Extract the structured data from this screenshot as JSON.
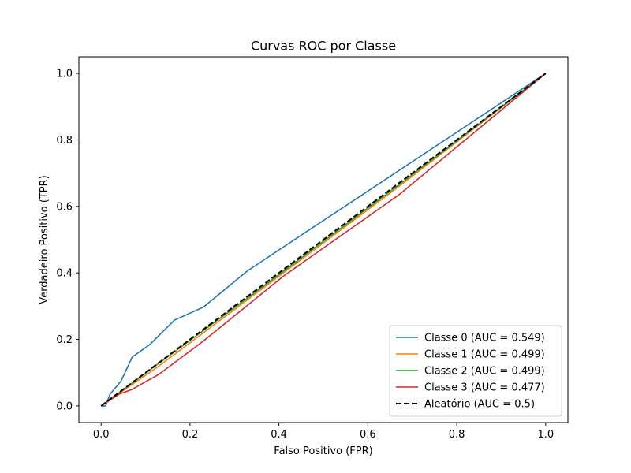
{
  "chart_data": {
    "type": "line",
    "title": "Curvas ROC por Classe",
    "xlabel": "Falso Positivo (FPR)",
    "ylabel": "Verdadeiro Positivo (TPR)",
    "xlim": [
      -0.05,
      1.05
    ],
    "ylim": [
      -0.05,
      1.05
    ],
    "xticks": [
      0.0,
      0.2,
      0.4,
      0.6,
      0.8,
      1.0
    ],
    "yticks": [
      0.0,
      0.2,
      0.4,
      0.6,
      0.8,
      1.0
    ],
    "xtick_labels": [
      "0.0",
      "0.2",
      "0.4",
      "0.6",
      "0.8",
      "1.0"
    ],
    "ytick_labels": [
      "0.0",
      "0.2",
      "0.4",
      "0.6",
      "0.8",
      "1.0"
    ],
    "grid": false,
    "legend_position": "lower-right",
    "series": [
      {
        "name": "Classe 0 (AUC = 0.549)",
        "color": "#1f77b4",
        "dashed": false,
        "x": [
          0.0,
          0.01,
          0.02,
          0.045,
          0.07,
          0.11,
          0.165,
          0.23,
          0.33,
          1.0
        ],
        "y": [
          0.0,
          0.0,
          0.035,
          0.075,
          0.147,
          0.185,
          0.258,
          0.297,
          0.407,
          1.0
        ]
      },
      {
        "name": "Classe 1 (AUC = 0.499)",
        "color": "#ff7f0e",
        "dashed": false,
        "x": [
          0.0,
          0.13,
          0.33,
          0.67,
          1.0
        ],
        "y": [
          0.0,
          0.12,
          0.32,
          0.66,
          1.0
        ]
      },
      {
        "name": "Classe 2 (AUC = 0.499)",
        "color": "#2ca02c",
        "dashed": false,
        "x": [
          0.0,
          0.33,
          0.67,
          1.0
        ],
        "y": [
          0.0,
          0.325,
          0.665,
          1.0
        ]
      },
      {
        "name": "Classe 3 (AUC = 0.477)",
        "color": "#d62728",
        "dashed": false,
        "x": [
          0.0,
          0.04,
          0.07,
          0.13,
          0.23,
          0.41,
          0.67,
          1.0
        ],
        "y": [
          0.0,
          0.035,
          0.05,
          0.095,
          0.195,
          0.39,
          0.635,
          1.0
        ]
      },
      {
        "name": "Aleatório (AUC = 0.5)",
        "color": "#000000",
        "dashed": true,
        "x": [
          0.0,
          1.0
        ],
        "y": [
          0.0,
          1.0
        ]
      }
    ]
  }
}
